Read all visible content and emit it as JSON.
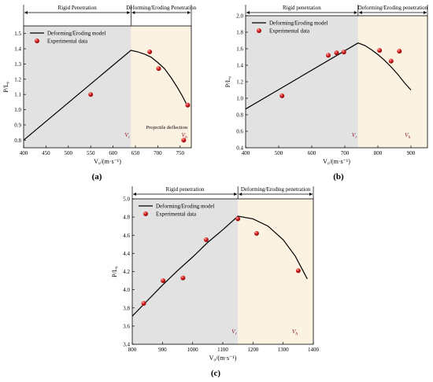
{
  "chart_data": [
    {
      "type": "line",
      "panel_label": "(a)",
      "xlabel": "V₀/(m·s⁻¹)",
      "ylabel": "P/L₀",
      "xlim": [
        400,
        775
      ],
      "ylim": [
        0.75,
        1.55
      ],
      "x_ticks": [
        "400",
        "450",
        "500",
        "550",
        "600",
        "650",
        "700",
        "750"
      ],
      "y_ticks": [
        "0.8",
        "0.9",
        "1.0",
        "1.1",
        "1.2",
        "1.3",
        "1.4",
        "1.5"
      ],
      "regions": [
        {
          "label": "Rigid Penetration",
          "x_start": 400,
          "x_end": 640,
          "color": "#e2e2e2"
        },
        {
          "label": "Deforming/Eroding Penetration",
          "x_start": 640,
          "x_end": 775,
          "color": "#fbf2e1"
        }
      ],
      "velocity_markers": [
        {
          "text": "V",
          "sub": "r",
          "x": 640
        },
        {
          "text": "V",
          "sub": "h",
          "x": 767
        }
      ],
      "legend_position": "top-left",
      "series": [
        {
          "name": "Deforming/Eroding model",
          "kind": "line",
          "x": [
            400,
            640,
            655,
            670,
            685,
            700,
            715,
            730,
            745,
            755,
            767
          ],
          "y": [
            0.8,
            1.39,
            1.38,
            1.365,
            1.345,
            1.31,
            1.27,
            1.21,
            1.14,
            1.09,
            1.02
          ]
        },
        {
          "name": "Experimental data",
          "kind": "scatter",
          "x": [
            550,
            682,
            702,
            767,
            758
          ],
          "y": [
            1.1,
            1.38,
            1.27,
            1.03,
            0.8
          ]
        }
      ],
      "annotations": [
        {
          "text": "Projectile deflection",
          "x": 720,
          "y": 0.875
        }
      ]
    },
    {
      "type": "line",
      "panel_label": "(b)",
      "xlabel": "V₀/(m·s⁻¹)",
      "ylabel": "P/L₀",
      "xlim": [
        400,
        950
      ],
      "ylim": [
        0.4,
        2.0
      ],
      "x_ticks": [
        "400",
        "500",
        "600",
        "700",
        "800",
        "900"
      ],
      "y_ticks": [
        "0.4",
        "0.6",
        "0.8",
        "1.0",
        "1.2",
        "1.4",
        "1.6",
        "1.8",
        "2.0"
      ],
      "regions": [
        {
          "label": "Rigid penetration",
          "x_start": 400,
          "x_end": 740,
          "color": "#e2e2e2"
        },
        {
          "label": "Deforming/Eroding penetration",
          "x_start": 740,
          "x_end": 950,
          "color": "#fbf2e1"
        }
      ],
      "velocity_markers": [
        {
          "text": "V",
          "sub": "r",
          "x": 740
        },
        {
          "text": "V",
          "sub": "h",
          "x": 900
        }
      ],
      "legend_position": "top-left",
      "series": [
        {
          "name": "Deforming/Eroding model",
          "kind": "line",
          "x": [
            400,
            740,
            760,
            780,
            800,
            820,
            840,
            860,
            880,
            900
          ],
          "y": [
            0.87,
            1.67,
            1.64,
            1.59,
            1.53,
            1.46,
            1.38,
            1.29,
            1.19,
            1.1
          ]
        },
        {
          "name": "Experimental data",
          "kind": "scatter",
          "x": [
            510,
            650,
            675,
            697,
            805,
            840,
            865
          ],
          "y": [
            1.03,
            1.52,
            1.55,
            1.56,
            1.58,
            1.45,
            1.57
          ]
        }
      ],
      "annotations": []
    },
    {
      "type": "line",
      "panel_label": "(c)",
      "xlabel": "V₀/(m·s⁻¹)",
      "ylabel": "P/L₀",
      "xlim": [
        800,
        1400
      ],
      "ylim": [
        3.4,
        5.0
      ],
      "x_ticks": [
        "800",
        "900",
        "1000",
        "1100",
        "1200",
        "1300",
        "1400"
      ],
      "y_ticks": [
        "3.4",
        "3.6",
        "3.8",
        "4.0",
        "4.2",
        "4.4",
        "4.6",
        "4.8",
        "5.0"
      ],
      "regions": [
        {
          "label": "Rigid penetration",
          "x_start": 800,
          "x_end": 1150,
          "color": "#e2e2e2"
        },
        {
          "label": "Deforming/Eroding penetration",
          "x_start": 1150,
          "x_end": 1400,
          "color": "#fbf2e1"
        }
      ],
      "velocity_markers": [
        {
          "text": "V",
          "sub": "r",
          "x": 1150
        },
        {
          "text": "V",
          "sub": "h",
          "x": 1350
        }
      ],
      "legend_position": "top-left",
      "series": [
        {
          "name": "Deforming/Eroding model",
          "kind": "line",
          "x": [
            800,
            850,
            900,
            950,
            1000,
            1050,
            1100,
            1150,
            1200,
            1250,
            1300,
            1340,
            1380
          ],
          "y": [
            3.71,
            3.88,
            4.05,
            4.21,
            4.36,
            4.52,
            4.66,
            4.81,
            4.78,
            4.7,
            4.55,
            4.37,
            4.12
          ]
        },
        {
          "name": "Experimental data",
          "kind": "scatter",
          "x": [
            838,
            902,
            968,
            1045,
            1150,
            1212,
            1350
          ],
          "y": [
            3.85,
            4.1,
            4.13,
            4.55,
            4.78,
            4.62,
            4.21
          ]
        }
      ],
      "annotations": []
    }
  ]
}
